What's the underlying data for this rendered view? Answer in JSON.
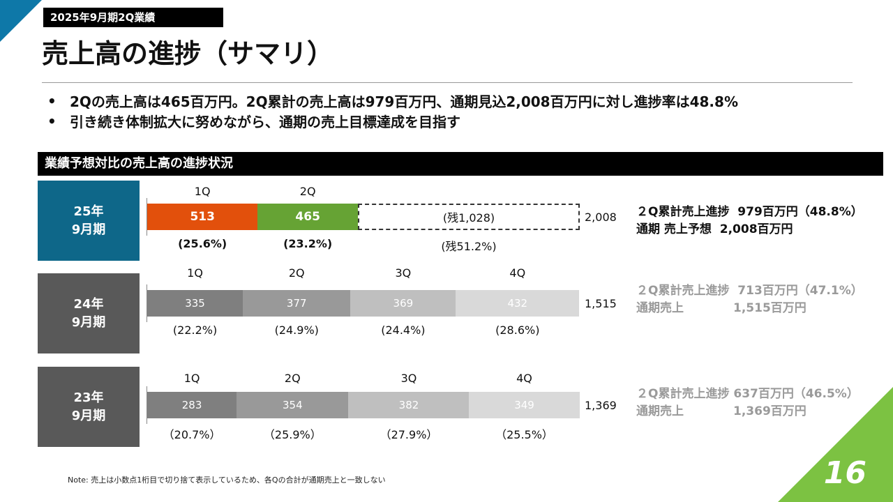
{
  "header": {
    "tag": "2025年9月期2Q業績",
    "title": "売上高の進捗（サマリ）",
    "bullets": [
      "2Qの売上高は465百万円。2Q累計の売上高は979百万円、通期見込2,008百万円に対し進捗率は48.8%",
      "引き続き体制拡大に努めながら、通期の売上目標達成を目指す"
    ],
    "bullet_mark": "•"
  },
  "section_title": "業績予想対比の売上高の進捗状況",
  "colors": {
    "accent_blue": "#0e6789",
    "accent_green": "#7cc242",
    "q1_2025": "#e2500c",
    "q2_2025": "#66a334",
    "gray_box": "#595959"
  },
  "chart_data": [
    {
      "type": "bar",
      "orientation": "horizontal-stacked",
      "period_line1": "25年",
      "period_line2": "9月期",
      "categories": [
        "1Q",
        "2Q"
      ],
      "values": [
        513,
        465
      ],
      "value_labels": [
        "513",
        "465"
      ],
      "pct_labels": [
        "(25.6%)",
        "(23.2%)"
      ],
      "remainder": {
        "value": 1028,
        "label": "(残1,028)",
        "pct_label": "(残51.2%)"
      },
      "total": 2008,
      "total_label": "2,008",
      "summary_lines": [
        "２Q累計売上進捗  979百万円（48.8%）",
        "通期 売上予想  2,008百万円"
      ]
    },
    {
      "type": "bar",
      "orientation": "horizontal-stacked",
      "period_line1": "24年",
      "period_line2": "9月期",
      "categories": [
        "1Q",
        "2Q",
        "3Q",
        "4Q"
      ],
      "values": [
        335,
        377,
        369,
        432
      ],
      "value_labels": [
        "335",
        "377",
        "369",
        "432"
      ],
      "pct_labels": [
        "(22.2%)",
        "(24.9%)",
        "(24.4%)",
        "(28.6%)"
      ],
      "total": 1515,
      "total_label": "1,515",
      "summary_lines": [
        "２Q累計売上進捗  713百万円（47.1%）",
        "通期売上            1,515百万円"
      ]
    },
    {
      "type": "bar",
      "orientation": "horizontal-stacked",
      "period_line1": "23年",
      "period_line2": "9月期",
      "categories": [
        "1Q",
        "2Q",
        "3Q",
        "4Q"
      ],
      "values": [
        283,
        354,
        382,
        349
      ],
      "value_labels": [
        "283",
        "354",
        "382",
        "349"
      ],
      "pct_labels": [
        "（20.7%）",
        "（25.9%）",
        "（27.9%）",
        "（25.5%）"
      ],
      "total": 1369,
      "total_label": "1,369",
      "summary_lines": [
        "２Q累計売上進捗 637百万円（46.5%）",
        "通期売上            1,369百万円"
      ]
    }
  ],
  "note": "Note: 売上は小数点1桁目で切り捨て表示しているため、各Qの合計が通期売上と一致しない",
  "page_number": "16"
}
